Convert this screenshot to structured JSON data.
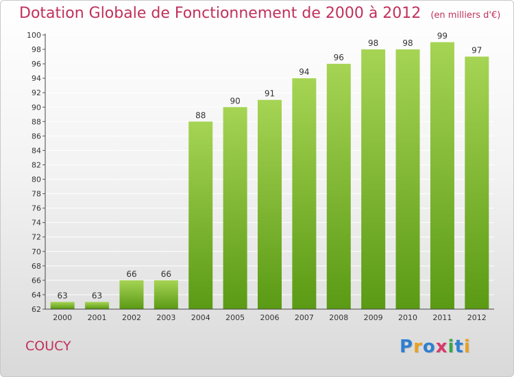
{
  "header": {
    "title": "Dotation Globale de Fonctionnement de 2000 à 2012",
    "subtitle": "(en milliers d'€)"
  },
  "footer": {
    "commune": "COUCY",
    "logo": {
      "text": "Proxiti",
      "colors": [
        "#2f7fd0",
        "#e8a020",
        "#2f7fd0",
        "#d83a6a",
        "#3aa64a",
        "#2f7fd0",
        "#e8a020"
      ]
    }
  },
  "colors": {
    "bar_top": "#a6d454",
    "bar_bottom": "#5a9a14",
    "title": "#c0305a",
    "grid": "#ffffff"
  },
  "chart_data": {
    "type": "bar",
    "title": "Dotation Globale de Fonctionnement de 2000 à 2012",
    "subtitle": "(en milliers d'€)",
    "xlabel": "",
    "ylabel": "",
    "categories": [
      "2000",
      "2001",
      "2002",
      "2003",
      "2004",
      "2005",
      "2006",
      "2007",
      "2008",
      "2009",
      "2010",
      "2011",
      "2012"
    ],
    "values": [
      63,
      63,
      66,
      66,
      88,
      90,
      91,
      94,
      96,
      98,
      98,
      99,
      97
    ],
    "ylim": [
      62,
      100
    ],
    "yticks": [
      62,
      64,
      66,
      68,
      70,
      72,
      74,
      76,
      78,
      80,
      82,
      84,
      86,
      88,
      90,
      92,
      94,
      96,
      98,
      100
    ],
    "grid": true,
    "data_labels": true
  }
}
